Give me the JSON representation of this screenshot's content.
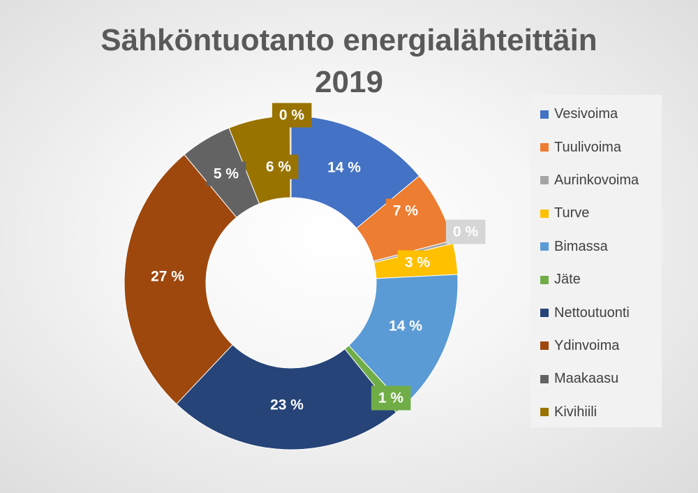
{
  "chart_data": {
    "type": "pie",
    "subtype": "doughnut",
    "title_line1": "Sähköntuotanto energialähteittäin",
    "title_line2": "2019",
    "legend_position": "right",
    "slices": [
      {
        "name": "Vesivoima",
        "value": 14,
        "label": "14 %",
        "color": "#4472c4"
      },
      {
        "name": "Tuulivoima",
        "value": 7,
        "label": "7 %",
        "color": "#ed7d31"
      },
      {
        "name": "Aurinkovoima",
        "value": 0.3,
        "label": "0 %",
        "color": "#a5a5a5"
      },
      {
        "name": "Turve",
        "value": 3,
        "label": "3 %",
        "color": "#ffc000"
      },
      {
        "name": "Bimassa",
        "value": 14,
        "label": "14 %",
        "color": "#5b9bd5"
      },
      {
        "name": "Jäte",
        "value": 1,
        "label": "1 %",
        "color": "#70ad47"
      },
      {
        "name": "Nettoutuonti",
        "value": 23,
        "label": "23 %",
        "color": "#264478"
      },
      {
        "name": "Ydinvoima",
        "value": 27,
        "label": "27 %",
        "color": "#9e480e"
      },
      {
        "name": "Maakaasu",
        "value": 5,
        "label": "5 %",
        "color": "#636363"
      },
      {
        "name": "Kivihiili",
        "value": 6,
        "label": "6 %",
        "color": "#997300"
      },
      {
        "name": "",
        "value": 0.1,
        "label": "0 %",
        "color": "#997300"
      }
    ]
  }
}
